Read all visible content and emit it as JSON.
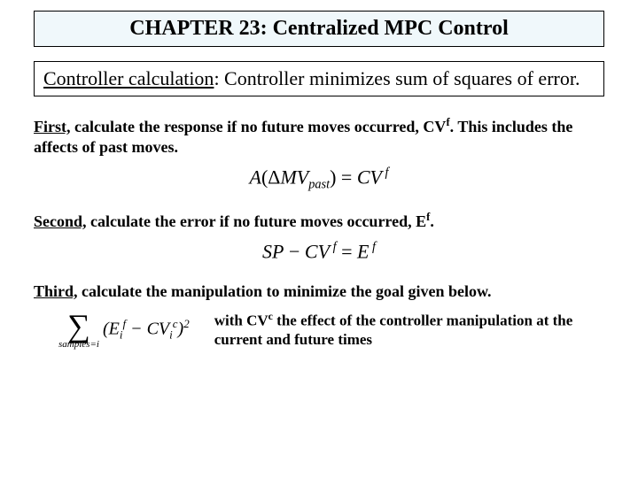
{
  "title": "CHAPTER 23: Centralized MPC Control",
  "subheading": {
    "label": "Controller calculation",
    "rest": ": Controller minimizes sum of squares of error."
  },
  "step1": {
    "label": "First,",
    "text_a": " calculate the response if no future moves occurred, CV",
    "sup": "f",
    "text_b": ".  This includes the affects of past moves."
  },
  "eq1": {
    "lhs_a": "A",
    "lhs_open": "(",
    "delta": "Δ",
    "mv": "MV",
    "mv_sub": "past",
    "lhs_close": ")",
    "eq": " = ",
    "cv": "CV",
    "cv_sup": " f"
  },
  "step2": {
    "label": "Second,",
    "text_a": " calculate the error if no future moves occurred, E",
    "sup": "f",
    "text_b": "."
  },
  "eq2": {
    "sp": "SP",
    "minus": " − ",
    "cv": "CV",
    "cv_sup": " f",
    "eq": " = ",
    "e": "E",
    "e_sup": " f"
  },
  "step3": {
    "label": "Third,",
    "text": " calculate the manipulation to minimize the goal given below."
  },
  "eq3": {
    "sigma_sub": "samples=i",
    "open": "(",
    "e": "E",
    "e_sub": "i",
    "e_sup": "f",
    "minus": " − ",
    "cv": "CV",
    "cv_sub": "i",
    "cv_sup": "c",
    "close": ")",
    "pow": "2"
  },
  "note": {
    "text_a": "with CV",
    "sup": "c",
    "text_b": " the effect of the controller manipulation at the current and future times"
  }
}
